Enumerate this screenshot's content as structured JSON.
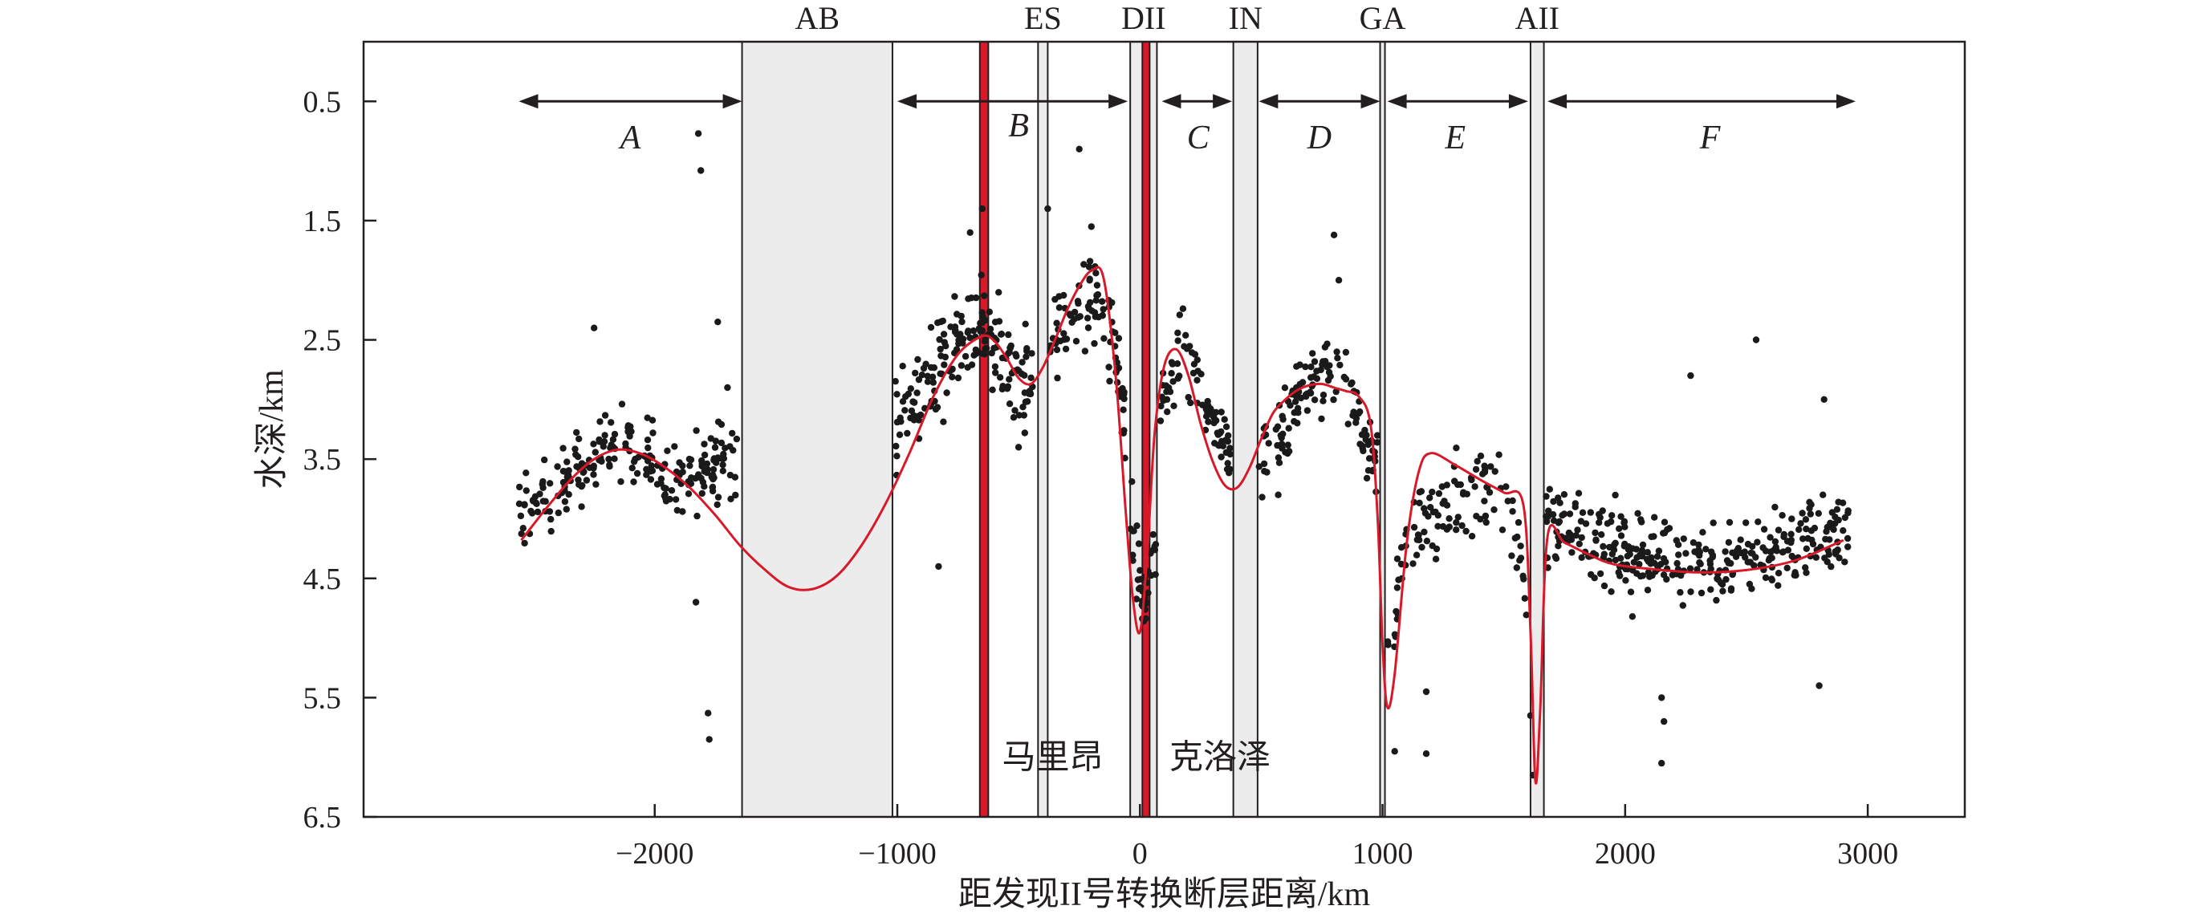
{
  "chart_data": {
    "type": "scatter",
    "xlabel": "距发现II号转换断层距离/km",
    "ylabel": "水深/km",
    "xlim": [
      -3200,
      3400
    ],
    "ylim": [
      0.0,
      6.5
    ],
    "y_inverted": true,
    "x_ticks": [
      -2000,
      -1000,
      0,
      1000,
      2000,
      3000
    ],
    "x_tick_labels": [
      "−2000",
      "−1000",
      "0",
      "1000",
      "2000",
      "3000"
    ],
    "y_ticks": [
      0.5,
      1.5,
      2.5,
      3.5,
      4.5,
      5.5,
      6.5
    ],
    "y_tick_labels": [
      "0.5",
      "1.5",
      "2.5",
      "3.5",
      "4.5",
      "5.5",
      "6.5"
    ],
    "zones": [
      {
        "label": "AB",
        "x0": -1640,
        "x1": -1020,
        "kind": "shaded"
      },
      {
        "label": "ES",
        "x0": -420,
        "x1": -380,
        "kind": "shaded"
      },
      {
        "label": "DII",
        "x0": -40,
        "x1": 70,
        "kind": "shaded"
      },
      {
        "label": "IN",
        "x0": 385,
        "x1": 485,
        "kind": "shaded"
      },
      {
        "label": "GA",
        "x0": 990,
        "x1": 1010,
        "kind": "shaded"
      },
      {
        "label": "AII",
        "x0": 1610,
        "x1": 1665,
        "kind": "shaded"
      }
    ],
    "red_bars": [
      {
        "x0": -660,
        "x1": -625
      },
      {
        "x0": 10,
        "x1": 40
      }
    ],
    "segments": [
      {
        "label": "A",
        "from": -2560,
        "to": -1640,
        "y": 0.5,
        "label_x": -2100,
        "label_y": 0.8
      },
      {
        "label": "B",
        "from": -1000,
        "to": -50,
        "y": 0.5,
        "label_x": -500,
        "label_y": 0.7
      },
      {
        "label": "C",
        "from": 90,
        "to": 380,
        "y": 0.5,
        "label_x": 240,
        "label_y": 0.8
      },
      {
        "label": "D",
        "from": 490,
        "to": 990,
        "y": 0.5,
        "label_x": 740,
        "label_y": 0.8
      },
      {
        "label": "E",
        "from": 1020,
        "to": 1600,
        "y": 0.5,
        "label_x": 1300,
        "label_y": 0.8
      },
      {
        "label": "F",
        "from": 1680,
        "to": 2950,
        "y": 0.5,
        "label_x": 2350,
        "label_y": 0.8
      }
    ],
    "annotations": [
      {
        "text": "马里昂",
        "x": -360,
        "y": 6.0
      },
      {
        "text": "克洛泽",
        "x": 330,
        "y": 6.0
      }
    ],
    "fit_curve": {
      "name": "",
      "color": "#d7192a",
      "x": [
        -2550,
        -2450,
        -2350,
        -2250,
        -2150,
        -2050,
        -1950,
        -1850,
        -1750,
        -1650,
        -1550,
        -1450,
        -1350,
        -1250,
        -1150,
        -1050,
        -950,
        -850,
        -750,
        -650,
        -600,
        -550,
        -500,
        -450,
        -400,
        -350,
        -300,
        -250,
        -200,
        -150,
        -100,
        -60,
        -30,
        0,
        30,
        60,
        100,
        150,
        200,
        250,
        300,
        350,
        400,
        450,
        500,
        550,
        600,
        650,
        700,
        750,
        800,
        850,
        900,
        950,
        980,
        1000,
        1020,
        1050,
        1100,
        1150,
        1200,
        1300,
        1400,
        1500,
        1580,
        1610,
        1630,
        1650,
        1680,
        1750,
        1850,
        1950,
        2100,
        2300,
        2500,
        2700,
        2900
      ],
      "y": [
        4.18,
        3.92,
        3.68,
        3.5,
        3.42,
        3.46,
        3.58,
        3.75,
        3.97,
        4.22,
        4.42,
        4.57,
        4.59,
        4.48,
        4.23,
        3.88,
        3.45,
        2.97,
        2.62,
        2.47,
        2.51,
        2.65,
        2.82,
        2.87,
        2.73,
        2.5,
        2.25,
        2.05,
        1.92,
        1.98,
        2.8,
        3.9,
        4.65,
        4.95,
        4.3,
        3.3,
        2.72,
        2.58,
        2.8,
        3.2,
        3.52,
        3.72,
        3.74,
        3.58,
        3.33,
        3.11,
        3.0,
        2.92,
        2.88,
        2.87,
        2.9,
        2.93,
        2.97,
        3.2,
        4.0,
        5.05,
        5.58,
        5.3,
        4.2,
        3.6,
        3.45,
        3.55,
        3.67,
        3.78,
        3.88,
        4.95,
        6.2,
        5.6,
        4.15,
        4.2,
        4.3,
        4.38,
        4.42,
        4.45,
        4.43,
        4.35,
        4.18
      ]
    },
    "point_groups": [
      {
        "x0": -2560,
        "x1": -1660,
        "center": [
          [
            -2560,
            4.0
          ],
          [
            -2150,
            3.3
          ],
          [
            -1900,
            3.7
          ],
          [
            -1680,
            3.5
          ]
        ],
        "spread": 0.38,
        "n": 220
      },
      {
        "x0": -1010,
        "x1": -440,
        "center": [
          [
            -1010,
            3.3
          ],
          [
            -800,
            2.6
          ],
          [
            -650,
            2.4
          ],
          [
            -500,
            2.9
          ],
          [
            -440,
            2.9
          ]
        ],
        "spread": 0.5,
        "n": 180
      },
      {
        "x0": -370,
        "x1": -60,
        "center": [
          [
            -370,
            2.5
          ],
          [
            -250,
            2.2
          ],
          [
            -150,
            2.1
          ],
          [
            -60,
            3.2
          ]
        ],
        "spread": 0.45,
        "n": 90
      },
      {
        "x0": -40,
        "x1": 70,
        "center": [
          [
            -40,
            3.8
          ],
          [
            10,
            4.7
          ],
          [
            70,
            4.2
          ]
        ],
        "spread": 0.4,
        "n": 40
      },
      {
        "x0": 80,
        "x1": 380,
        "center": [
          [
            80,
            3.1
          ],
          [
            180,
            2.5
          ],
          [
            300,
            3.2
          ],
          [
            380,
            3.5
          ]
        ],
        "spread": 0.35,
        "n": 80
      },
      {
        "x0": 490,
        "x1": 980,
        "center": [
          [
            490,
            3.5
          ],
          [
            650,
            3.0
          ],
          [
            800,
            2.7
          ],
          [
            960,
            3.5
          ]
        ],
        "spread": 0.35,
        "n": 130
      },
      {
        "x0": 1020,
        "x1": 1600,
        "center": [
          [
            1020,
            5.2
          ],
          [
            1100,
            4.2
          ],
          [
            1300,
            3.8
          ],
          [
            1500,
            3.8
          ],
          [
            1600,
            4.6
          ]
        ],
        "spread": 0.4,
        "n": 110
      },
      {
        "x0": 1670,
        "x1": 2920,
        "center": [
          [
            1670,
            4.0
          ],
          [
            2000,
            4.3
          ],
          [
            2400,
            4.4
          ],
          [
            2900,
            4.1
          ]
        ],
        "spread": 0.42,
        "n": 330
      }
    ],
    "outliers": [
      {
        "x": -1820,
        "y": 0.77
      },
      {
        "x": -1810,
        "y": 1.08
      },
      {
        "x": -1780,
        "y": 5.63
      },
      {
        "x": -1775,
        "y": 5.85
      },
      {
        "x": -1830,
        "y": 4.7
      },
      {
        "x": -1740,
        "y": 2.35
      },
      {
        "x": -1700,
        "y": 2.9
      },
      {
        "x": -2250,
        "y": 2.4
      },
      {
        "x": -700,
        "y": 1.6
      },
      {
        "x": -650,
        "y": 1.4
      },
      {
        "x": -830,
        "y": 4.4
      },
      {
        "x": -250,
        "y": 0.9
      },
      {
        "x": -380,
        "y": 1.4
      },
      {
        "x": -200,
        "y": 1.55
      },
      {
        "x": -500,
        "y": 3.4
      },
      {
        "x": 800,
        "y": 1.62
      },
      {
        "x": 820,
        "y": 2.0
      },
      {
        "x": 570,
        "y": 3.8
      },
      {
        "x": 1050,
        "y": 5.95
      },
      {
        "x": 1180,
        "y": 5.97
      },
      {
        "x": 1180,
        "y": 5.45
      },
      {
        "x": 1620,
        "y": 6.15
      },
      {
        "x": 1610,
        "y": 5.65
      },
      {
        "x": 2150,
        "y": 5.5
      },
      {
        "x": 2160,
        "y": 5.7
      },
      {
        "x": 2150,
        "y": 6.05
      },
      {
        "x": 2540,
        "y": 2.5
      },
      {
        "x": 2270,
        "y": 2.8
      },
      {
        "x": 2820,
        "y": 3.0
      },
      {
        "x": 2800,
        "y": 5.4
      }
    ]
  }
}
